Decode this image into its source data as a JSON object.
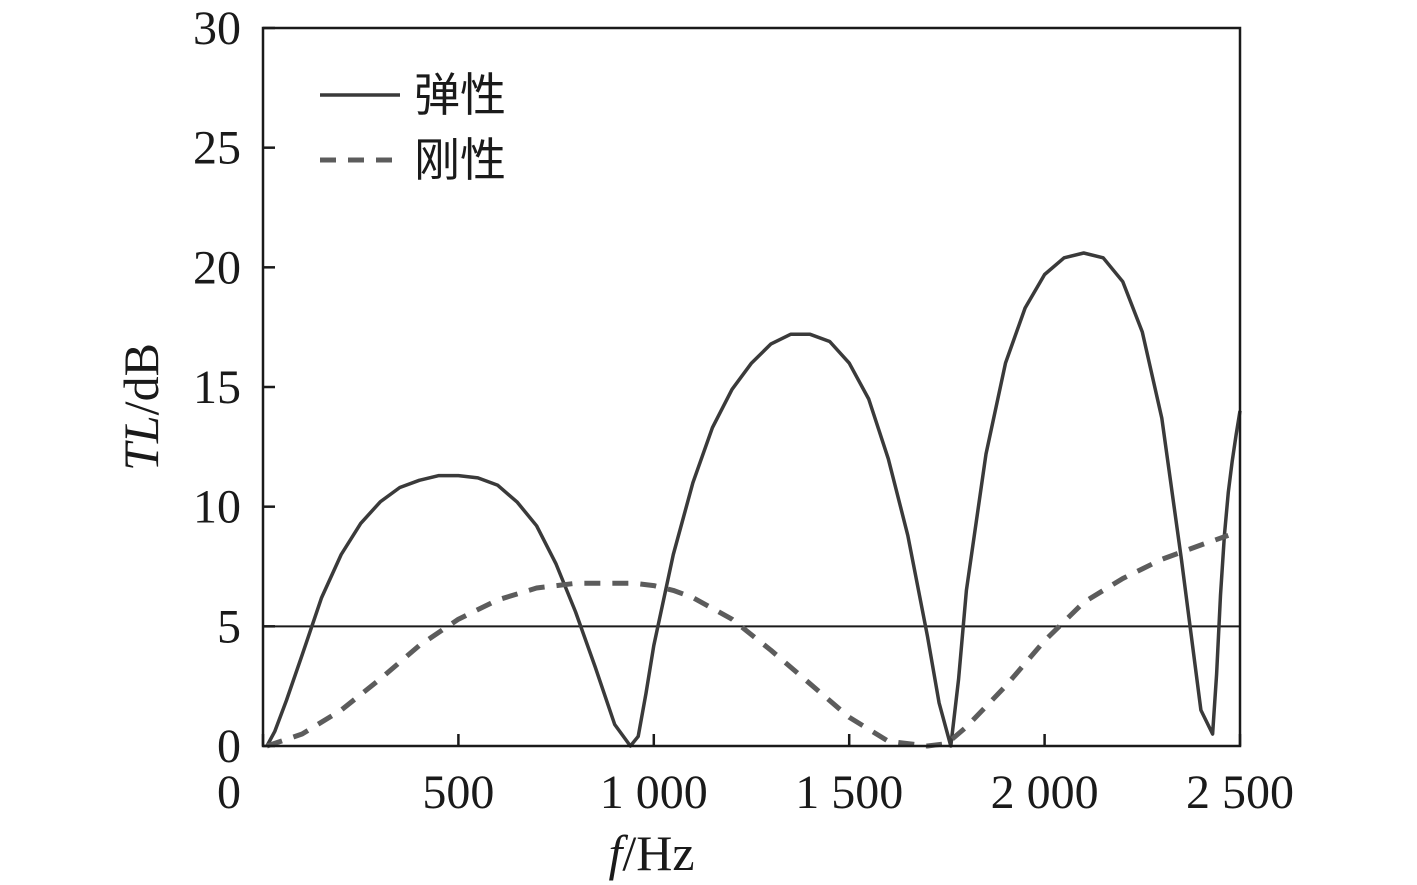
{
  "chart_data": {
    "type": "line",
    "title": "",
    "xlabel_var": "f",
    "xlabel_unit": "/Hz",
    "ylabel_var": "TL",
    "ylabel_unit": "/dB",
    "xlim": [
      0,
      2500
    ],
    "ylim": [
      0,
      30
    ],
    "x_ticks": [
      {
        "value": 0,
        "label": "0"
      },
      {
        "value": 500,
        "label": "500"
      },
      {
        "value": 1000,
        "label": "1 000"
      },
      {
        "value": 1500,
        "label": "1 500"
      },
      {
        "value": 2000,
        "label": "2 000"
      },
      {
        "value": 2500,
        "label": "2 500"
      }
    ],
    "y_ticks": [
      {
        "value": 0,
        "label": "0"
      },
      {
        "value": 5,
        "label": "5"
      },
      {
        "value": 10,
        "label": "10"
      },
      {
        "value": 15,
        "label": "15"
      },
      {
        "value": 20,
        "label": "20"
      },
      {
        "value": 25,
        "label": "25"
      },
      {
        "value": 30,
        "label": "30"
      }
    ],
    "grid": false,
    "legend_position": "top-left",
    "reference_line": {
      "y": 5
    },
    "series": [
      {
        "name": "弹性",
        "style": "solid",
        "color": "#3a3a3a",
        "x": [
          10,
          30,
          60,
          100,
          150,
          200,
          250,
          300,
          350,
          400,
          450,
          500,
          550,
          600,
          650,
          700,
          750,
          800,
          850,
          900,
          940,
          960,
          980,
          1000,
          1050,
          1100,
          1150,
          1200,
          1250,
          1300,
          1350,
          1400,
          1450,
          1500,
          1550,
          1600,
          1650,
          1700,
          1730,
          1760,
          1780,
          1800,
          1850,
          1900,
          1950,
          2000,
          2050,
          2100,
          2150,
          2200,
          2250,
          2300,
          2350,
          2400,
          2430,
          2440,
          2450,
          2460,
          2470,
          2480,
          2490,
          2500
        ],
        "y": [
          0,
          0.6,
          1.9,
          3.8,
          6.2,
          8.0,
          9.3,
          10.2,
          10.8,
          11.1,
          11.3,
          11.3,
          11.2,
          10.9,
          10.2,
          9.2,
          7.6,
          5.6,
          3.3,
          0.9,
          0.0,
          0.4,
          2.2,
          4.2,
          8.0,
          11.0,
          13.3,
          14.9,
          16.0,
          16.8,
          17.2,
          17.2,
          16.9,
          16.0,
          14.5,
          12.0,
          8.8,
          4.6,
          1.8,
          0.0,
          2.8,
          6.5,
          12.2,
          16.0,
          18.3,
          19.7,
          20.4,
          20.6,
          20.4,
          19.4,
          17.3,
          13.7,
          7.8,
          1.5,
          0.5,
          3.0,
          6.3,
          8.8,
          10.6,
          11.9,
          13.0,
          14.0
        ]
      },
      {
        "name": "刚性",
        "style": "dashed",
        "color": "#5c5c5c",
        "x": [
          10,
          100,
          200,
          300,
          400,
          500,
          600,
          700,
          800,
          850,
          900,
          950,
          1000,
          1050,
          1100,
          1200,
          1300,
          1400,
          1500,
          1600,
          1700,
          1750,
          1800,
          1900,
          2000,
          2100,
          2200,
          2300,
          2400,
          2470
        ],
        "y": [
          0,
          0.5,
          1.5,
          2.8,
          4.2,
          5.3,
          6.1,
          6.6,
          6.8,
          6.8,
          6.8,
          6.8,
          6.7,
          6.5,
          6.2,
          5.3,
          4.0,
          2.6,
          1.2,
          0.2,
          0.0,
          0.1,
          0.8,
          2.5,
          4.4,
          6.0,
          7.0,
          7.8,
          8.4,
          8.8
        ]
      }
    ]
  }
}
